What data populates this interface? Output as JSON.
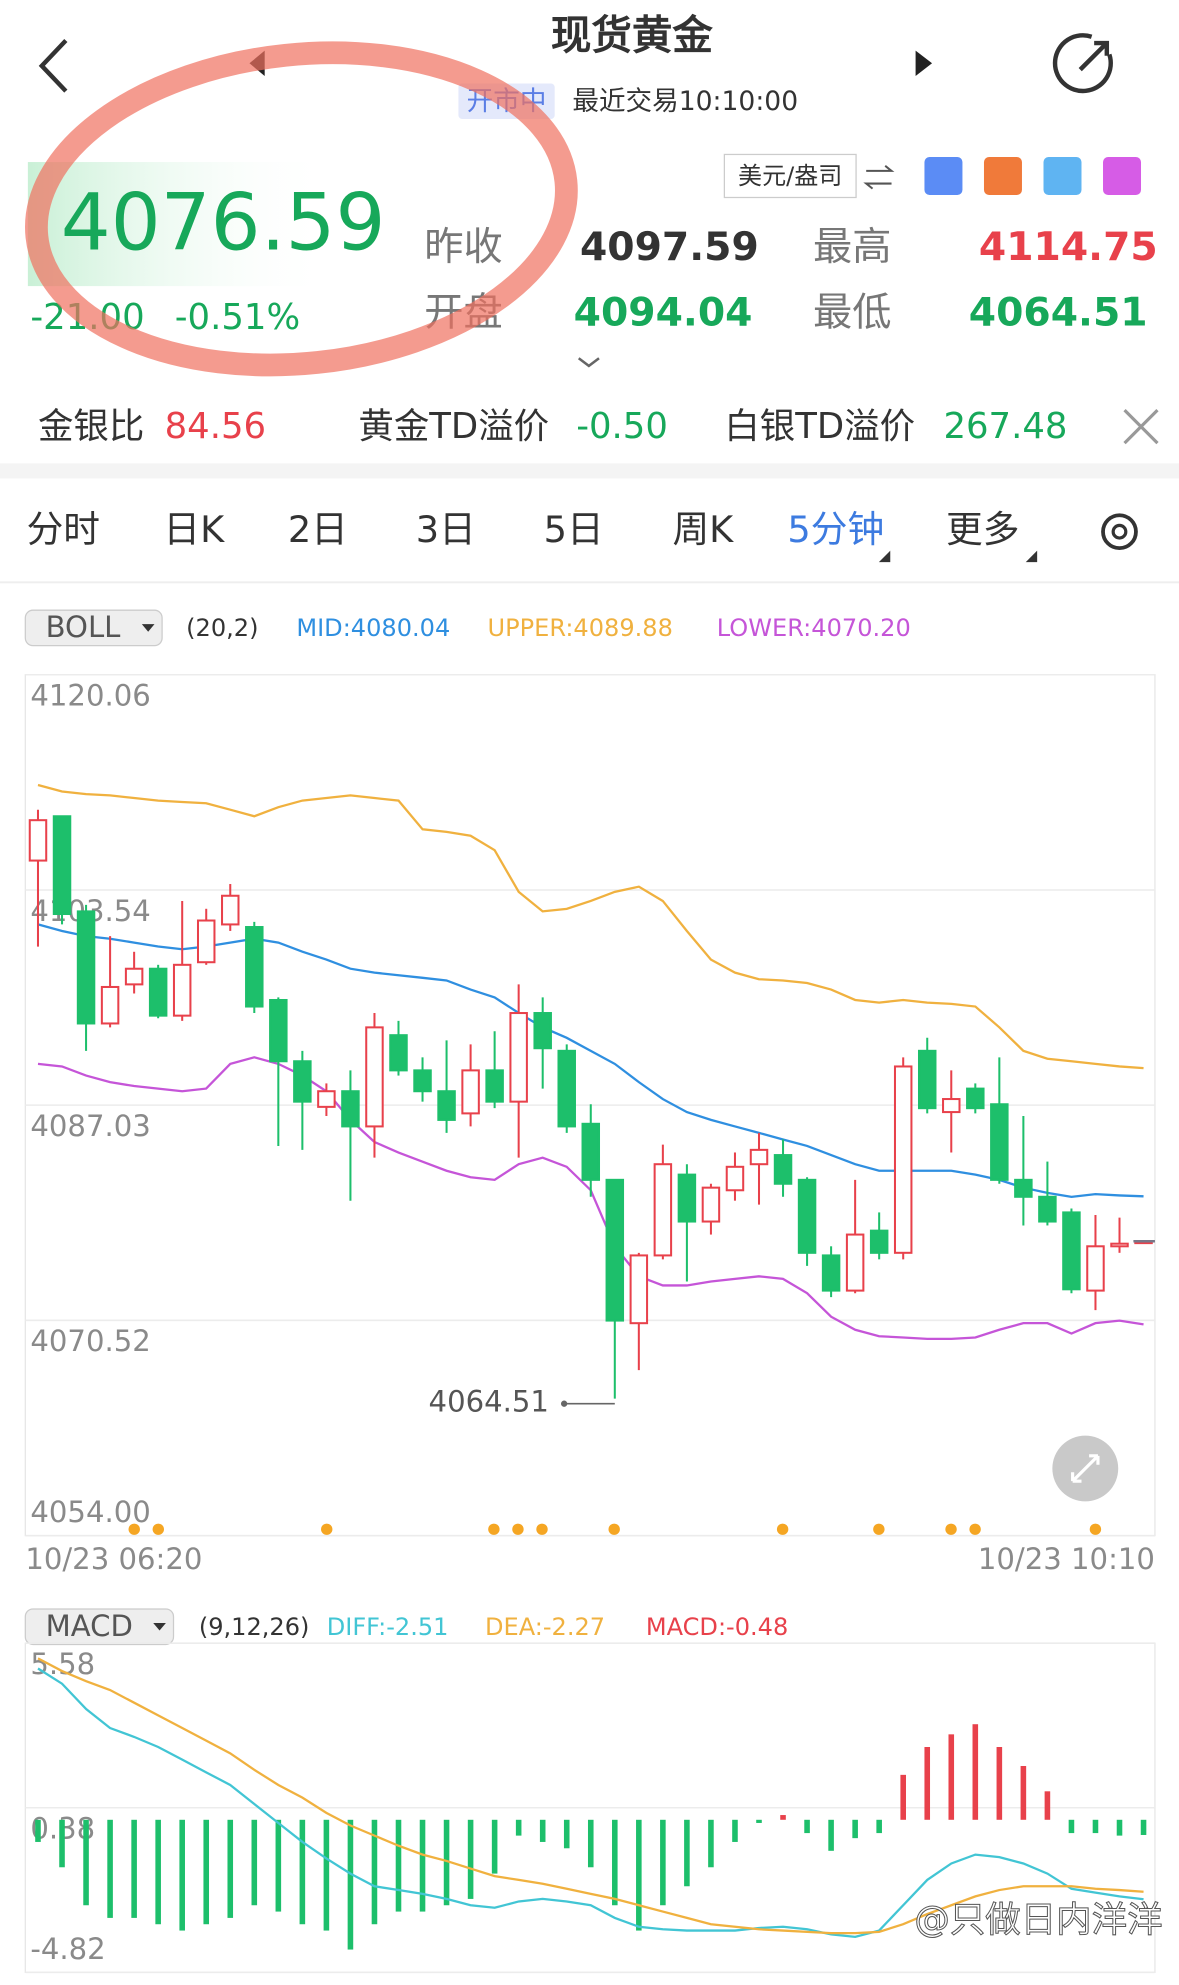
{
  "header": {
    "title": "现货黄金",
    "status": "开市中",
    "last_trade": "最近交易10:10:00"
  },
  "quote": {
    "price": "4076.59",
    "change": "-21.00",
    "change_pct": "-0.51%",
    "unit": "美元/盎司",
    "fields": [
      {
        "label": "昨收",
        "value": "4097.59"
      },
      {
        "label": "开盘",
        "value": "4094.04"
      },
      {
        "label": "最高",
        "value": "4114.75"
      },
      {
        "label": "最低",
        "value": "4064.51"
      }
    ]
  },
  "spreads": [
    {
      "label": "金银比",
      "value": "84.56"
    },
    {
      "label": "黄金TD溢价",
      "value": "-0.50"
    },
    {
      "label": "白银TD溢价",
      "value": "267.48"
    }
  ],
  "tabs": [
    {
      "label": "分时"
    },
    {
      "label": "日K"
    },
    {
      "label": "2日"
    },
    {
      "label": "3日"
    },
    {
      "label": "5日"
    },
    {
      "label": "周K"
    },
    {
      "label": "5分钟",
      "active": true,
      "dropdown": true
    },
    {
      "label": "更多",
      "dropdown": true
    }
  ],
  "indicators": {
    "boll": {
      "name": "BOLL",
      "params": "(20,2)",
      "mid": "MID:4080.04",
      "upper": "UPPER:4089.88",
      "lower": "LOWER:4070.20"
    },
    "macd": {
      "name": "MACD",
      "params": "(9,12,26)",
      "diff": "DIFF:-2.51",
      "dea": "DEA:-2.27",
      "macd": "MACD:-0.48"
    }
  },
  "watermark": "@只做日内洋洋",
  "chart_data": [
    {
      "type": "candlestick",
      "up_color": "#e8414b",
      "down_color": "#1dbf6b",
      "grid": true,
      "ylim": [
        4054.0,
        4120.06
      ],
      "yticks": [
        4120.06,
        4103.54,
        4087.03,
        4070.52,
        {
          "value": 4054.0,
          "label": "4054.00"
        }
      ],
      "categories": [
        "10/23 06:20",
        null,
        null,
        null,
        null,
        null,
        null,
        null,
        null,
        null,
        null,
        null,
        null,
        null,
        null,
        null,
        null,
        null,
        null,
        null,
        null,
        null,
        null,
        null,
        null,
        null,
        null,
        null,
        null,
        null,
        null,
        null,
        null,
        null,
        null,
        null,
        null,
        null,
        null,
        null,
        null,
        null,
        null,
        null,
        null,
        null,
        "10/23 10:10"
      ],
      "candles": [
        [
          4105.8,
          4109.7,
          4099.2,
          4108.9
        ],
        [
          4109.2,
          4109.2,
          4100.9,
          4101.7
        ],
        [
          4101.9,
          4102.4,
          4091.2,
          4093.3
        ],
        [
          4093.3,
          4100.0,
          4093.0,
          4096.1
        ],
        [
          4096.3,
          4098.8,
          4095.6,
          4097.5
        ],
        [
          4097.5,
          4097.8,
          4093.7,
          4093.9
        ],
        [
          4093.9,
          4102.7,
          4093.5,
          4097.8
        ],
        [
          4098.0,
          4102.1,
          4097.8,
          4101.2
        ],
        [
          4100.9,
          4104.0,
          4100.4,
          4103.1
        ],
        [
          4100.7,
          4101.1,
          4094.1,
          4094.6
        ],
        [
          4095.1,
          4095.3,
          4083.9,
          4090.4
        ],
        [
          4090.4,
          4091.2,
          4083.6,
          4087.3
        ],
        [
          4086.9,
          4088.7,
          4086.2,
          4088.1
        ],
        [
          4088.1,
          4089.7,
          4079.7,
          4085.4
        ],
        [
          4085.4,
          4094.1,
          4083.0,
          4093.0
        ],
        [
          4092.4,
          4093.5,
          4089.3,
          4089.7
        ],
        [
          4089.7,
          4090.7,
          4087.3,
          4088.1
        ],
        [
          4088.1,
          4092.0,
          4084.9,
          4085.9
        ],
        [
          4086.4,
          4091.7,
          4085.4,
          4089.7
        ],
        [
          4089.7,
          4092.7,
          4086.8,
          4087.3
        ],
        [
          4087.3,
          4096.3,
          4083.0,
          4094.1
        ],
        [
          4094.1,
          4095.3,
          4088.3,
          4091.4
        ],
        [
          4091.2,
          4091.7,
          4084.9,
          4085.4
        ],
        [
          4085.6,
          4087.1,
          4080.0,
          4081.3
        ],
        [
          4081.3,
          4081.3,
          4064.51,
          4070.5
        ],
        [
          4070.3,
          4075.7,
          4066.7,
          4075.5
        ],
        [
          4075.5,
          4084.0,
          4075.2,
          4082.5
        ],
        [
          4081.7,
          4082.5,
          4073.5,
          4078.1
        ],
        [
          4078.1,
          4081.0,
          4077.1,
          4080.7
        ],
        [
          4080.5,
          4083.4,
          4079.7,
          4082.3
        ],
        [
          4082.5,
          4084.9,
          4079.4,
          4083.6
        ],
        [
          4083.2,
          4084.4,
          4080.0,
          4081.0
        ],
        [
          4081.3,
          4081.5,
          4074.7,
          4075.7
        ],
        [
          4075.5,
          4076.2,
          4072.3,
          4072.8
        ],
        [
          4072.8,
          4081.3,
          4072.6,
          4077.1
        ],
        [
          4077.4,
          4078.8,
          4075.2,
          4075.7
        ],
        [
          4075.7,
          4090.7,
          4075.2,
          4090.0
        ],
        [
          4091.2,
          4092.2,
          4086.4,
          4086.8
        ],
        [
          4086.5,
          4089.7,
          4083.4,
          4087.5
        ],
        [
          4088.3,
          4088.7,
          4086.4,
          4086.8
        ],
        [
          4087.1,
          4090.7,
          4081.0,
          4081.3
        ],
        [
          4081.3,
          4086.2,
          4077.8,
          4080.0
        ],
        [
          4080.0,
          4082.7,
          4077.8,
          4078.1
        ],
        [
          4078.8,
          4079.1,
          4072.6,
          4072.9
        ],
        [
          4072.8,
          4078.6,
          4071.3,
          4076.2
        ],
        [
          4076.2,
          4078.4,
          4075.7,
          4076.4
        ],
        [
          4076.59,
          4076.59,
          4076.59,
          4076.59
        ]
      ],
      "overlays": [
        {
          "color": "#f0b13f",
          "values": [
            4111.6,
            4111.1,
            4110.9,
            4110.8,
            4110.6,
            4110.4,
            4110.3,
            4110.2,
            4109.7,
            4109.2,
            4109.9,
            4110.4,
            4110.6,
            4110.8,
            4110.6,
            4110.4,
            4108.2,
            4108.0,
            4107.7,
            4106.6,
            4103.4,
            4101.9,
            4102.1,
            4102.7,
            4103.4,
            4103.8,
            4102.7,
            4100.4,
            4098.2,
            4097.2,
            4096.7,
            4096.6,
            4096.4,
            4095.9,
            4095.1,
            4094.9,
            4095.1,
            4094.9,
            4094.8,
            4094.6,
            4093.0,
            4091.2,
            4090.6,
            4090.4,
            4090.2,
            4090.0,
            4089.88
          ]
        },
        {
          "color": "#2f8fe0",
          "values": [
            4100.9,
            4100.4,
            4100.0,
            4099.8,
            4099.5,
            4099.2,
            4099.0,
            4099.2,
            4099.5,
            4099.8,
            4099.5,
            4098.8,
            4098.2,
            4097.5,
            4097.2,
            4097.0,
            4096.8,
            4096.6,
            4095.9,
            4095.3,
            4094.1,
            4093.0,
            4092.2,
            4091.2,
            4090.2,
            4088.8,
            4087.5,
            4086.5,
            4085.9,
            4085.4,
            4084.9,
            4084.4,
            4083.9,
            4083.2,
            4082.5,
            4082.0,
            4082.0,
            4082.0,
            4082.0,
            4081.7,
            4081.3,
            4080.7,
            4080.3,
            4080.0,
            4080.2,
            4080.1,
            4080.04
          ]
        },
        {
          "color": "#c555d8",
          "values": [
            4090.2,
            4090.0,
            4089.3,
            4088.8,
            4088.5,
            4088.3,
            4088.1,
            4088.3,
            4090.2,
            4090.7,
            4090.2,
            4089.3,
            4088.1,
            4085.9,
            4084.2,
            4083.4,
            4082.7,
            4082.0,
            4081.5,
            4081.3,
            4082.5,
            4083.0,
            4082.3,
            4080.5,
            4076.2,
            4073.9,
            4073.2,
            4073.2,
            4073.5,
            4073.7,
            4073.9,
            4073.7,
            4072.6,
            4070.8,
            4069.8,
            4069.3,
            4069.2,
            4069.1,
            4069.1,
            4069.2,
            4069.8,
            4070.3,
            4070.3,
            4069.5,
            4070.3,
            4070.5,
            4070.2
          ]
        }
      ]
    },
    {
      "type": "macd",
      "up_color": "#e8414b",
      "down_color": "#1dbf6b",
      "grid": true,
      "ylim": [
        -4.82,
        5.58
      ],
      "yticks": [
        5.58,
        0.38,
        -4.82
      ],
      "histogram": [
        -0.7,
        -1.5,
        -2.7,
        -3.1,
        -3.1,
        -3.3,
        -3.5,
        -3.3,
        -3.1,
        -2.7,
        -2.9,
        -3.3,
        -3.5,
        -4.1,
        -3.3,
        -2.9,
        -2.9,
        -2.7,
        -2.5,
        -1.7,
        -0.5,
        -0.7,
        -0.9,
        -1.5,
        -2.7,
        -3.5,
        -2.7,
        -2.1,
        -1.5,
        -0.7,
        -0.1,
        0.15,
        -0.42,
        -0.98,
        -0.58,
        -0.42,
        1.42,
        2.3,
        2.7,
        3.02,
        2.3,
        1.7,
        0.9,
        -0.42,
        -0.42,
        -0.5,
        -0.48
      ],
      "lines": [
        {
          "color": "#42c5d4",
          "values": [
            4.78,
            4.3,
            3.5,
            2.9,
            2.62,
            2.3,
            1.9,
            1.5,
            1.1,
            0.5,
            -0.1,
            -0.7,
            -1.22,
            -1.7,
            -2.1,
            -2.22,
            -2.34,
            -2.5,
            -2.7,
            -2.78,
            -2.58,
            -2.5,
            -2.58,
            -2.7,
            -3.1,
            -3.38,
            -3.46,
            -3.5,
            -3.5,
            -3.5,
            -3.42,
            -3.38,
            -3.46,
            -3.62,
            -3.7,
            -3.5,
            -2.7,
            -1.9,
            -1.38,
            -1.1,
            -1.18,
            -1.38,
            -1.7,
            -2.18,
            -2.3,
            -2.42,
            -2.51
          ]
        },
        {
          "color": "#f0b13f",
          "values": [
            5.1,
            4.7,
            4.38,
            4.1,
            3.7,
            3.3,
            2.9,
            2.5,
            2.1,
            1.58,
            1.1,
            0.7,
            0.22,
            -0.18,
            -0.5,
            -0.82,
            -1.1,
            -1.3,
            -1.54,
            -1.78,
            -1.9,
            -2.02,
            -2.18,
            -2.34,
            -2.5,
            -2.7,
            -2.9,
            -3.1,
            -3.3,
            -3.38,
            -3.46,
            -3.5,
            -3.54,
            -3.58,
            -3.58,
            -3.54,
            -3.3,
            -2.98,
            -2.7,
            -2.42,
            -2.22,
            -2.1,
            -2.1,
            -2.1,
            -2.18,
            -2.22,
            -2.27
          ]
        }
      ]
    }
  ]
}
